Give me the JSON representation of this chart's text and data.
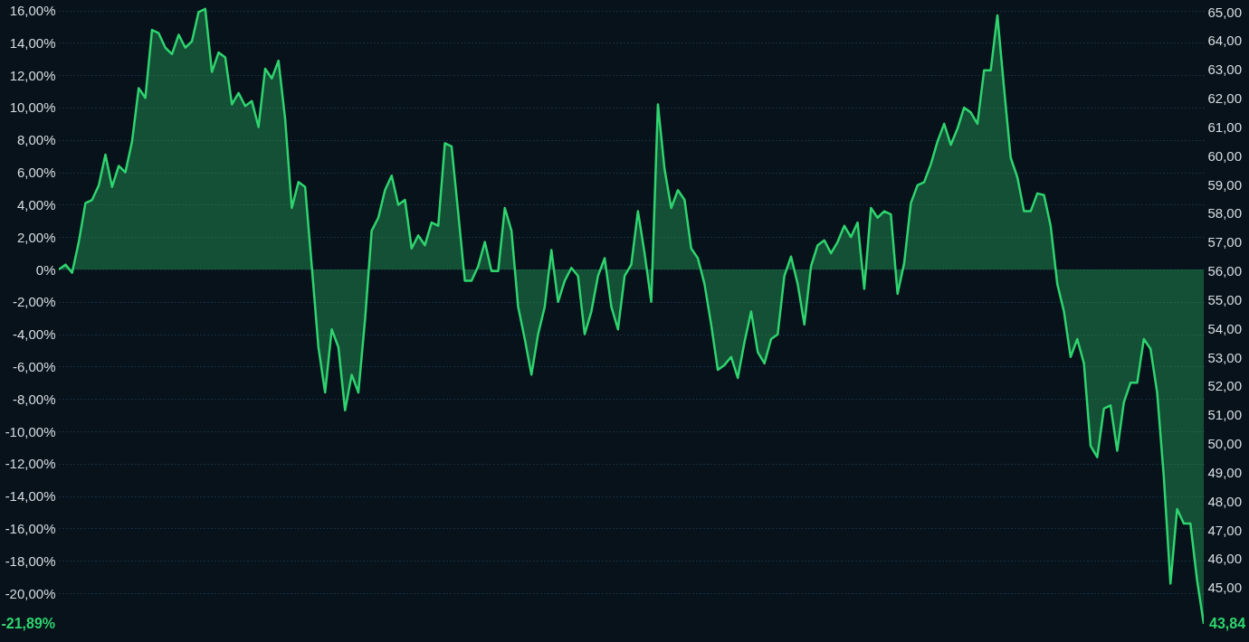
{
  "chart_data": {
    "type": "area",
    "categories": [
      null,
      null,
      null,
      null,
      null,
      null,
      null,
      null,
      null,
      null,
      null,
      null,
      null,
      null,
      null,
      null,
      null,
      null,
      null,
      null,
      null,
      null,
      null,
      null,
      null,
      null,
      null,
      null,
      null,
      null,
      null,
      null,
      null,
      null,
      null,
      null,
      null,
      null,
      null,
      null,
      null,
      null,
      null,
      null,
      null,
      null,
      null,
      null,
      null,
      null,
      null,
      null,
      null,
      null,
      null,
      null,
      null,
      null,
      null,
      null,
      null,
      null,
      null,
      null,
      null,
      null,
      null,
      null,
      null,
      null,
      null,
      null,
      null,
      null,
      null,
      null,
      null,
      null,
      null,
      null,
      null,
      null,
      null,
      null,
      null,
      null,
      null,
      null,
      null,
      null,
      null,
      null,
      null,
      null,
      null,
      null,
      null,
      null,
      null,
      null,
      null,
      null,
      null,
      null,
      null,
      null,
      null,
      null,
      null,
      null,
      null,
      null,
      null,
      null,
      null,
      null,
      null,
      null,
      null,
      null,
      null,
      null,
      null,
      null,
      null,
      null,
      null,
      null,
      null,
      null,
      null,
      null,
      null,
      null,
      null,
      null,
      null,
      null,
      null,
      null,
      null,
      null,
      null,
      null,
      null,
      null,
      null,
      null,
      null,
      null,
      null,
      null,
      null,
      null,
      null,
      null,
      null,
      null,
      null,
      null,
      null,
      null,
      null,
      null,
      null,
      null,
      null,
      null,
      null,
      null,
      null,
      null,
      null
    ],
    "series": [
      {
        "color": "#2fd46f",
        "values": [
          0,
          0.3,
          -0.2,
          1.7,
          4.1,
          4.3,
          5.2,
          7.1,
          5.1,
          6.4,
          6.0,
          7.9,
          11.2,
          10.6,
          14.8,
          14.6,
          13.7,
          13.3,
          14.5,
          13.7,
          14.1,
          15.9,
          16.1,
          12.2,
          13.4,
          13.1,
          10.2,
          10.9,
          10.1,
          10.4,
          8.8,
          12.4,
          11.8,
          12.9,
          9.3,
          3.8,
          5.4,
          5.1,
          0.2,
          -4.8,
          -7.6,
          -3.7,
          -4.8,
          -8.7,
          -6.5,
          -7.6,
          -3.1,
          2.4,
          3.2,
          4.9,
          5.8,
          4.0,
          4.3,
          1.3,
          2.1,
          1.5,
          2.9,
          2.7,
          7.8,
          7.6,
          3.5,
          -0.7,
          -0.7,
          0.2,
          1.7,
          -0.1,
          -0.1,
          3.8,
          2.4,
          -2.3,
          -4.3,
          -6.5,
          -4.0,
          -2.3,
          1.2,
          -2.0,
          -0.7,
          0.1,
          -0.4,
          -4.0,
          -2.6,
          -0.4,
          0.7,
          -2.3,
          -3.7,
          -0.4,
          0.3,
          3.6,
          1.0,
          -2.0,
          10.2,
          6.2,
          3.8,
          4.9,
          4.3,
          1.3,
          0.7,
          -0.9,
          -3.4,
          -6.2,
          -5.9,
          -5.4,
          -6.7,
          -4.5,
          -2.6,
          -5.1,
          -5.8,
          -4.3,
          -4.0,
          -0.4,
          0.8,
          -0.9,
          -3.4,
          0.2,
          1.5,
          1.8,
          1.0,
          1.7,
          2.7,
          2.0,
          2.9,
          -1.2,
          3.8,
          3.2,
          3.6,
          3.4,
          -1.5,
          0.4,
          4.1,
          5.2,
          5.4,
          6.5,
          7.9,
          9.0,
          7.7,
          8.7,
          10.0,
          9.7,
          9.0,
          12.3,
          12.3,
          15.7,
          11.2,
          6.9,
          5.7,
          3.6,
          3.6,
          4.7,
          4.6,
          2.7,
          -0.9,
          -2.6,
          -5.4,
          -4.3,
          -5.8,
          -10.9,
          -11.6,
          -8.6,
          -8.4,
          -11.2,
          -8.2,
          -7.0,
          -7.0,
          -4.3,
          -4.9,
          -7.6,
          -12.8,
          -19.4,
          -14.8,
          -15.7,
          -15.7,
          -19.2,
          -21.89
        ]
      }
    ],
    "ylim": [
      -22.9,
      16.2
    ],
    "yticks": [
      {
        "value": 16,
        "label": "16,00%"
      },
      {
        "value": 14,
        "label": "14,00%"
      },
      {
        "value": 12,
        "label": "12,00%"
      },
      {
        "value": 10,
        "label": "10,00%"
      },
      {
        "value": 8,
        "label": "8,00%"
      },
      {
        "value": 6,
        "label": "6,00%"
      },
      {
        "value": 4,
        "label": "4,00%"
      },
      {
        "value": 2,
        "label": "2,00%"
      },
      {
        "value": 0,
        "label": "0%"
      },
      {
        "value": -2,
        "label": "-2,00%"
      },
      {
        "value": -4,
        "label": "-4,00%"
      },
      {
        "value": -6,
        "label": "-6,00%"
      },
      {
        "value": -8,
        "label": "-8,00%"
      },
      {
        "value": -10,
        "label": "-10,00%"
      },
      {
        "value": -12,
        "label": "-12,00%"
      },
      {
        "value": -14,
        "label": "-14,00%"
      },
      {
        "value": -16,
        "label": "-16,00%"
      },
      {
        "value": -18,
        "label": "-18,00%"
      },
      {
        "value": -20,
        "label": "-20,00%"
      }
    ],
    "y2lim": [
      43.17,
      65.16
    ],
    "y2ticks": [
      {
        "value": 45,
        "label": "45,00"
      },
      {
        "value": 46,
        "label": "46,00"
      },
      {
        "value": 47,
        "label": "47,00"
      },
      {
        "value": 48,
        "label": "48,00"
      },
      {
        "value": 49,
        "label": "49,00"
      },
      {
        "value": 50,
        "label": "50,00"
      },
      {
        "value": 51,
        "label": "51,00"
      },
      {
        "value": 52,
        "label": "52,00"
      },
      {
        "value": 53,
        "label": "53,00"
      },
      {
        "value": 54,
        "label": "54,00"
      },
      {
        "value": 55,
        "label": "55,00"
      },
      {
        "value": 56,
        "label": "56,00"
      },
      {
        "value": 57,
        "label": "57,00"
      },
      {
        "value": 58,
        "label": "58,00"
      },
      {
        "value": 59,
        "label": "59,00"
      },
      {
        "value": 60,
        "label": "60,00"
      },
      {
        "value": 61,
        "label": "61,00"
      },
      {
        "value": 62,
        "label": "62,00"
      },
      {
        "value": 63,
        "label": "63,00"
      },
      {
        "value": 64,
        "label": "64,00"
      },
      {
        "value": 65,
        "label": "65,00"
      }
    ],
    "annotations": [
      "-21,89%",
      "43,84"
    ],
    "grid": "y",
    "marker": "none",
    "line_style": "solid"
  }
}
